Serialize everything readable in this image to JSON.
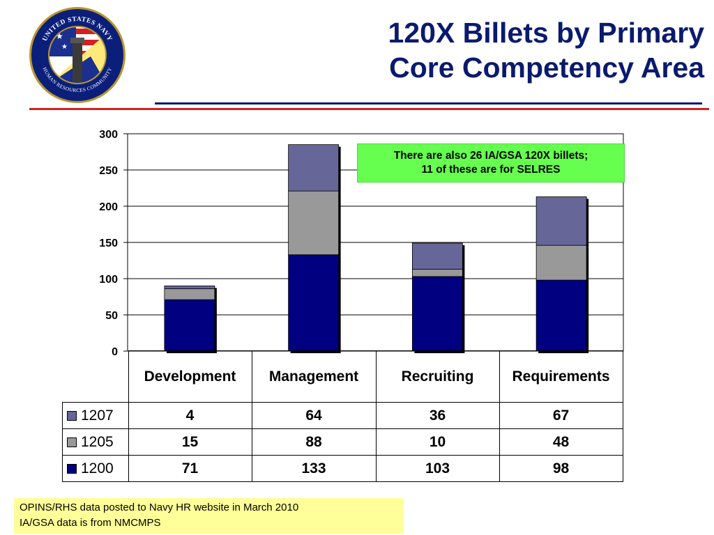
{
  "title": {
    "line1": "120X Billets by Primary",
    "line2": "Core Competency Area"
  },
  "seal": {
    "text_top": "UNITED STATES NAVY",
    "text_bottom": "HUMAN RESOURCES COMMUNITY"
  },
  "colors": {
    "title": "#0a1a6e",
    "rule_red": "#d42020",
    "rule_blue": "#0a1a6e",
    "s1200": "#000080",
    "s1205": "#999999",
    "s1207": "#666699",
    "callout_bg": "#66ff4f",
    "footnote_bg": "#ffff99"
  },
  "callout": {
    "line1": "There are also 26 IA/GSA 120X billets;",
    "line2": "11 of these are for SELRES"
  },
  "footnote": {
    "line1": "OPINS/RHS data posted to Navy HR website in March 2010",
    "line2": "IA/GSA data is from NMCMPS"
  },
  "chart_data": {
    "type": "bar",
    "stacked": true,
    "categories": [
      "Development",
      "Management",
      "Recruiting",
      "Requirements"
    ],
    "series": [
      {
        "name": "1200",
        "color": "#000080",
        "values": [
          71,
          133,
          103,
          98
        ]
      },
      {
        "name": "1205",
        "color": "#999999",
        "values": [
          15,
          88,
          10,
          48
        ]
      },
      {
        "name": "1207",
        "color": "#666699",
        "values": [
          4,
          64,
          36,
          67
        ]
      }
    ],
    "table_rows": [
      {
        "name": "1207",
        "color": "#666699",
        "values": [
          "4",
          "64",
          "36",
          "67"
        ]
      },
      {
        "name": "1205",
        "color": "#999999",
        "values": [
          "15",
          "88",
          "10",
          "48"
        ]
      },
      {
        "name": "1200",
        "color": "#000080",
        "values": [
          "71",
          "133",
          "103",
          "98"
        ]
      }
    ],
    "ylim": [
      0,
      300
    ],
    "yticks": [
      "0",
      "50",
      "100",
      "150",
      "200",
      "250",
      "300"
    ],
    "grid": true,
    "legend": "data-table"
  }
}
